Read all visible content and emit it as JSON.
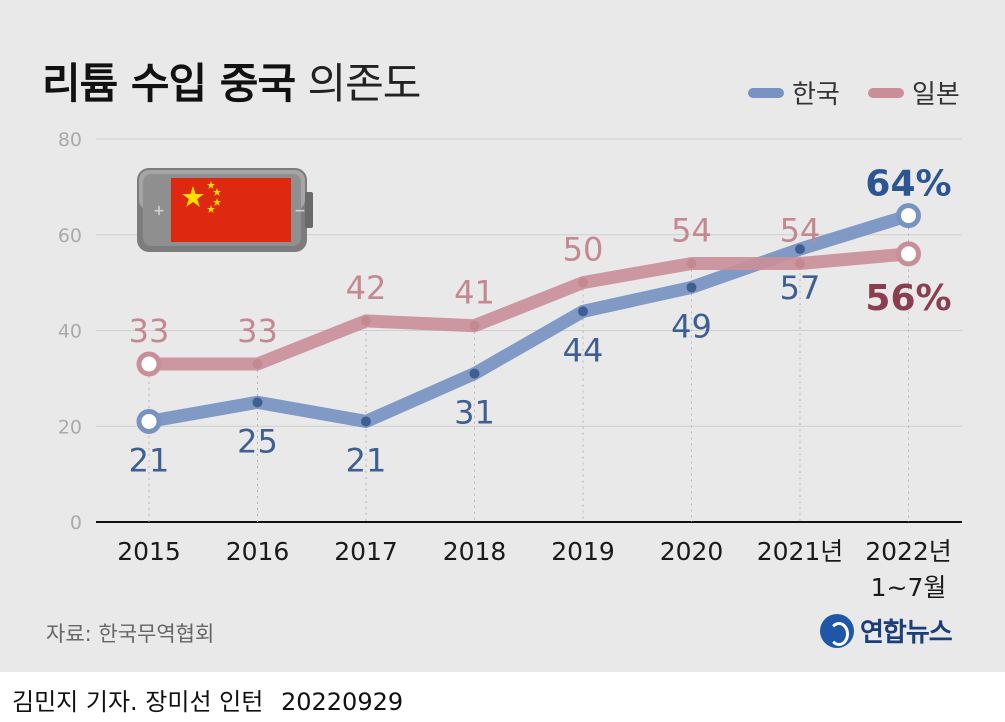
{
  "title": {
    "bold": "리튬 수입 중국",
    "light": "의존도"
  },
  "legend": [
    {
      "name": "한국",
      "color": "#7693c1"
    },
    {
      "name": "일본",
      "color": "#c98f99"
    }
  ],
  "source": "자료: 한국무역협회",
  "logo": "연합뉴스",
  "credit": {
    "author": "김민지 기자. 장미선 인턴",
    "date": "20220929"
  },
  "chart_data": {
    "type": "line",
    "categories": [
      "2015",
      "2016",
      "2017",
      "2018",
      "2019",
      "2020",
      "2021년",
      "2022년\n1~7월"
    ],
    "series": [
      {
        "name": "한국",
        "values": [
          21,
          25,
          21,
          31,
          44,
          49,
          57,
          64
        ],
        "color": "#7693c1",
        "label_color": "#3f5f93",
        "last_label_color": "#2d5591",
        "label_position": "below"
      },
      {
        "name": "일본",
        "values": [
          33,
          33,
          42,
          41,
          50,
          54,
          54,
          56
        ],
        "color": "#c98f99",
        "label_color": "#c48891",
        "last_label_color": "#8c3e51",
        "label_position": "above"
      }
    ],
    "data_labels": {
      "한국": [
        "21",
        "25",
        "21",
        "31",
        "44",
        "49",
        "57",
        "64%"
      ],
      "일본": [
        "33",
        "33",
        "42",
        "41",
        "50",
        "54",
        "54",
        "56%"
      ]
    },
    "ylim": [
      0,
      80
    ],
    "yticks": [
      "0",
      "20",
      "40",
      "60",
      "80"
    ],
    "grid": true,
    "legend_position": "top-right"
  }
}
